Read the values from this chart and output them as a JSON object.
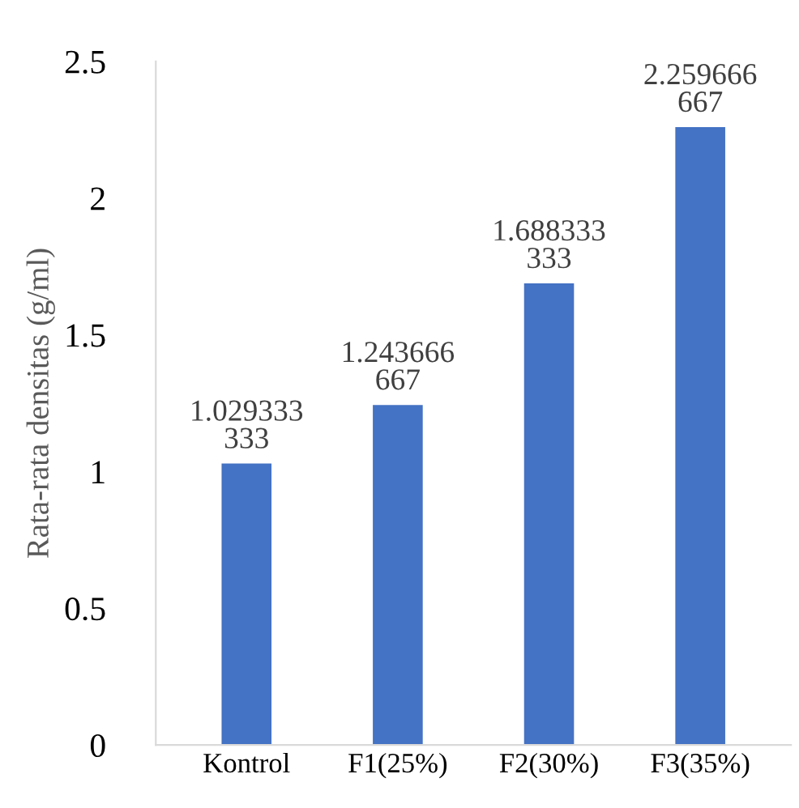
{
  "chart_data": {
    "type": "bar",
    "ylabel": "Rata-rata densitas (g/ml)",
    "categories": [
      "Kontrol",
      "F1(25%)",
      "F2(30%)",
      "F3(35%)"
    ],
    "values": [
      1.029333333,
      1.243666667,
      1.688333333,
      2.259666667
    ],
    "color": "#4472c4",
    "ylim": [
      0,
      2.5
    ],
    "yticks": [
      0,
      0.5,
      1,
      1.5,
      2,
      2.5
    ],
    "grid": false,
    "data_labels": true
  }
}
